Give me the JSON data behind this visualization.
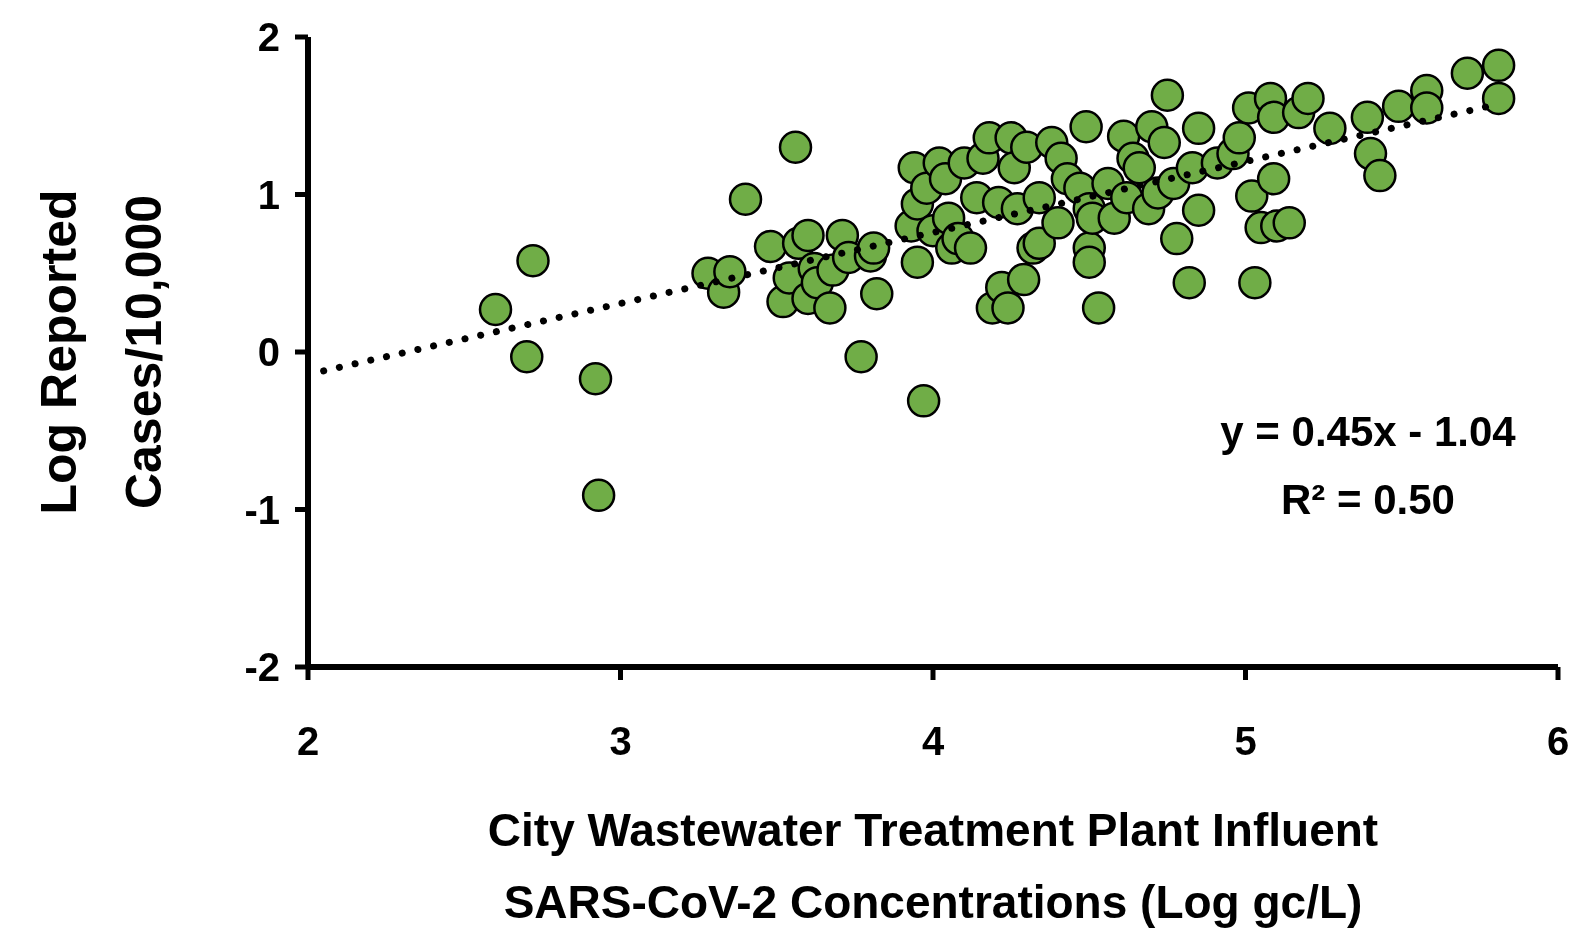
{
  "chart_data": {
    "type": "scatter",
    "xlabel": "City Wastewater Treatment Plant Influent SARS-CoV-2 Concentrations (Log gc/L)",
    "ylabel": "Log Reported Cases/10,000",
    "xlim": [
      2,
      6
    ],
    "ylim": [
      -2,
      2
    ],
    "xticks": [
      2,
      3,
      4,
      5,
      6
    ],
    "yticks": [
      -2,
      -1,
      0,
      1,
      2
    ],
    "grid": false,
    "annotations": [
      "y = 0.45x - 1.04",
      "R² = 0.50"
    ],
    "series": [
      {
        "color": "#70ad47",
        "marker": "circle",
        "x": [
          2.6,
          2.7,
          2.72,
          2.92,
          2.93,
          3.28,
          3.33,
          3.35,
          3.4,
          3.48,
          3.52,
          3.56,
          3.54,
          3.57,
          3.6,
          3.6,
          3.62,
          3.63,
          3.67,
          3.68,
          3.71,
          3.73,
          3.77,
          3.8,
          3.81,
          3.82,
          3.95,
          3.93,
          3.94,
          3.95,
          3.97,
          3.98,
          4.0,
          4.02,
          4.04,
          4.05,
          4.06,
          4.08,
          4.1,
          4.12,
          4.14,
          4.16,
          4.18,
          4.19,
          4.21,
          4.22,
          4.24,
          4.25,
          4.26,
          4.27,
          4.29,
          4.3,
          4.32,
          4.34,
          4.34,
          4.38,
          4.4,
          4.41,
          4.43,
          4.47,
          4.49,
          4.5,
          4.5,
          4.5,
          4.51,
          4.53,
          4.56,
          4.58,
          4.61,
          4.62,
          4.64,
          4.66,
          4.69,
          4.7,
          4.72,
          4.74,
          4.75,
          4.77,
          4.78,
          4.82,
          4.83,
          4.85,
          4.85,
          4.91,
          4.96,
          4.98,
          5.01,
          5.02,
          5.03,
          5.05,
          5.08,
          5.09,
          5.09,
          5.1,
          5.14,
          5.17,
          5.2,
          5.27,
          5.39,
          5.4,
          5.43,
          5.49,
          5.58,
          5.58,
          5.71,
          5.81,
          5.81
        ],
        "values": [
          0.27,
          -0.03,
          0.58,
          -0.17,
          -0.91,
          0.5,
          0.38,
          0.51,
          0.97,
          0.67,
          0.32,
          1.3,
          0.47,
          0.69,
          0.74,
          0.34,
          0.53,
          0.44,
          0.28,
          0.52,
          0.74,
          0.6,
          -0.03,
          0.61,
          0.66,
          0.37,
          0.57,
          0.8,
          1.17,
          0.94,
          -0.31,
          1.04,
          0.77,
          1.2,
          1.1,
          0.85,
          0.66,
          0.72,
          1.2,
          0.66,
          0.98,
          1.23,
          1.36,
          0.28,
          0.95,
          0.41,
          0.28,
          1.36,
          1.17,
          0.91,
          0.46,
          1.3,
          0.66,
          0.98,
          0.69,
          1.33,
          0.82,
          1.23,
          1.1,
          1.04,
          1.43,
          0.91,
          0.66,
          0.57,
          0.85,
          0.28,
          1.07,
          0.85,
          1.37,
          0.98,
          1.23,
          1.17,
          0.91,
          1.43,
          1.01,
          1.33,
          1.63,
          1.07,
          0.72,
          0.44,
          1.17,
          1.42,
          0.9,
          1.2,
          1.26,
          1.36,
          1.55,
          0.99,
          0.44,
          0.79,
          1.61,
          1.49,
          1.1,
          0.8,
          0.82,
          1.52,
          1.61,
          1.42,
          1.49,
          1.26,
          1.12,
          1.56,
          1.66,
          1.55,
          1.77,
          1.82,
          1.61
        ]
      },
      {
        "type": "line",
        "color": "#000000",
        "line_style": "dotted",
        "x": [
          2.05,
          5.8
        ],
        "values": [
          -0.12,
          1.57
        ]
      }
    ]
  }
}
